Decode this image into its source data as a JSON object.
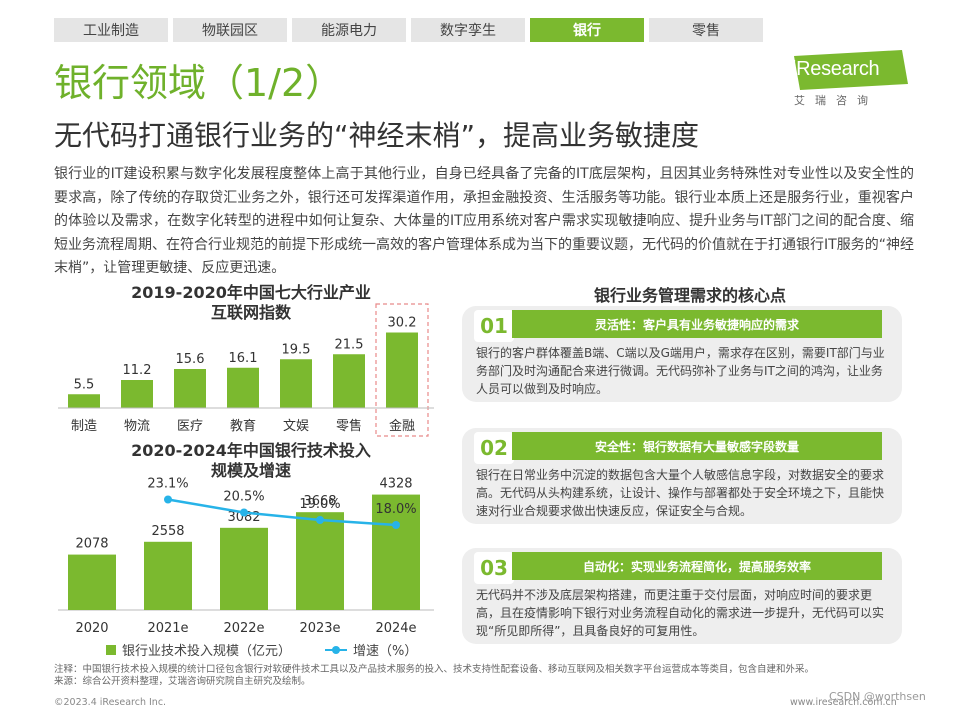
{
  "tabs": [
    {
      "label": "工业制造",
      "active": false
    },
    {
      "label": "物联园区",
      "active": false
    },
    {
      "label": "能源电力",
      "active": false
    },
    {
      "label": "数字孪生",
      "active": false
    },
    {
      "label": "银行",
      "active": true
    },
    {
      "label": "零售",
      "active": false
    }
  ],
  "logo": {
    "text": "iResearch",
    "sub": "艾瑞咨询"
  },
  "page": {
    "title": "银行领域（1/2）",
    "subtitle": "无代码打通银行业务的“神经末梢”，提高业务敏捷度",
    "body": "银行业的IT建设积累与数字化发展程度整体上高于其他行业，自身已经具备了完备的IT底层架构，且因其业务特殊性对专业性以及安全性的要求高，除了传统的存取贷汇业务之外，银行还可发挥渠道作用，承担金融投资、生活服务等功能。银行业本质上还是服务行业，重视客户的体验以及需求，在数字化转型的进程中如何让复杂、大体量的IT应用系统对客户需求实现敏捷响应、提升业务与IT部门之间的配合度、缩短业务流程周期、在符合行业规范的前提下形成统一高效的客户管理体系成为当下的重要议题，无代码的价值就在于打通银行IT服务的“神经末梢”，让管理更敏捷、反应更迅速。"
  },
  "chart1_title": "2019-2020年中国七大行业产业\n互联网指数",
  "chart2_title": "2020-2024年中国银行技术投入\n规模及增速",
  "chart_data": [
    {
      "type": "bar",
      "title": "2019-2020年中国七大行业产业互联网指数",
      "categories": [
        "制造",
        "物流",
        "医疗",
        "教育",
        "文娱",
        "零售",
        "金融"
      ],
      "values": [
        5.5,
        11.2,
        15.6,
        16.1,
        19.5,
        21.5,
        30.2
      ],
      "highlight": "金融",
      "ylim": [
        0,
        32
      ],
      "color": "#7bb92f"
    },
    {
      "type": "bar+line",
      "title": "2020-2024年中国银行技术投入规模及增速",
      "categories": [
        "2020",
        "2021e",
        "2022e",
        "2023e",
        "2024e"
      ],
      "series": [
        {
          "name": "银行业技术投入规模（亿元）",
          "type": "bar",
          "values": [
            2078,
            2558,
            3082,
            3668,
            4328
          ],
          "color": "#7bb92f"
        },
        {
          "name": "增速（%）",
          "type": "line",
          "values": [
            null,
            23.1,
            20.5,
            19.0,
            18.0
          ],
          "labels": [
            "",
            "23.1%",
            "20.5%",
            "19.0%",
            "18.0%"
          ],
          "color": "#27b3e8"
        }
      ],
      "ylim": [
        0,
        4500
      ]
    }
  ],
  "legend": {
    "bar": "银行业技术投入规模（亿元）",
    "line": "增速（%）"
  },
  "right": {
    "title": "银行业务管理需求的核心点",
    "cards": [
      {
        "num": "01",
        "head": "灵活性：客户具有业务敏捷响应的需求",
        "body": "银行的客户群体覆盖B端、C端以及G端用户，需求存在区别，需要IT部门与业务部门及时沟通配合来进行微调。无代码弥补了业务与IT之间的鸿沟，让业务人员可以做到及时响应。"
      },
      {
        "num": "02",
        "head": "安全性：银行数据有大量敏感字段数量",
        "body": "银行在日常业务中沉淀的数据包含大量个人敏感信息字段，对数据安全的要求高。无代码从头构建系统，让设计、操作与部署都处于安全环境之下，且能快速对行业合规要求做出快速反应，保证安全与合规。"
      },
      {
        "num": "03",
        "head": "自动化：实现业务流程简化，提高服务效率",
        "body": "无代码并不涉及底层架构搭建，而更注重于交付层面，对响应时间的要求更高，且在疫情影响下银行对业务流程自动化的需求进一步提升，无代码可以实现“所见即所得”，且具备良好的可复用性。"
      }
    ]
  },
  "footer": {
    "note1": "注释：中国银行技术投入规模的统计口径包含银行对软硬件技术工具以及产品技术服务的投入、技术支持性配套设备、移动互联网及相关数字平台运营成本等类目，包含自建和外采。",
    "note2": "来源：综合公开资料整理，艾瑞咨询研究院自主研究及绘制。",
    "copyright": "©2023.4 iResearch Inc.",
    "url": "www.iresearch.com.cn",
    "watermark": "CSDN @worthsen"
  }
}
